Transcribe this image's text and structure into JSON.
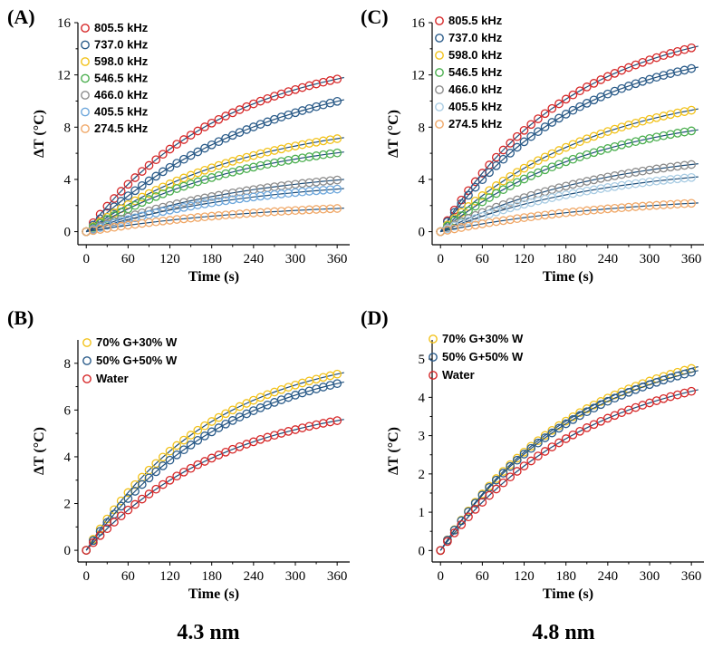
{
  "captions": {
    "left": "4.3 nm",
    "right": "4.8 nm"
  },
  "colors": {
    "red": "#d62728",
    "blue": "#2b5c8a",
    "yellow": "#f2c21a",
    "green": "#4caf50",
    "gray": "#8c8c8c",
    "lightblue": "#6fa8dc",
    "orange": "#f0a868",
    "paleblue": "#a9cce3",
    "fitline": "#1f4e79"
  },
  "chart_data": [
    {
      "id": "A",
      "panel_label": "(A)",
      "type": "scatter",
      "xlabel": "Time (s)",
      "ylabel": "ΔT (°C)",
      "xlim": [
        -12,
        378
      ],
      "ylim": [
        -1,
        16
      ],
      "xticks": [
        "0",
        "60",
        "120",
        "180",
        "240",
        "300",
        "360"
      ],
      "yticks": [
        "0",
        "4",
        "8",
        "12",
        "16"
      ],
      "series": [
        {
          "name": "805.5 kHz",
          "color": "#d62728",
          "final": 11.8,
          "tau": 200
        },
        {
          "name": "737.0 kHz",
          "color": "#2b5c8a",
          "final": 10.1,
          "tau": 260
        },
        {
          "name": "598.0 kHz",
          "color": "#f2c21a",
          "final": 7.2,
          "tau": 230
        },
        {
          "name": "546.5 kHz",
          "color": "#4caf50",
          "final": 6.1,
          "tau": 230
        },
        {
          "name": "466.0 kHz",
          "color": "#8c8c8c",
          "final": 4.0,
          "tau": 240
        },
        {
          "name": "405.5 kHz",
          "color": "#6fa8dc",
          "final": 3.3,
          "tau": 240
        },
        {
          "name": "274.5 kHz",
          "color": "#f0a868",
          "final": 1.8,
          "tau": 260
        }
      ]
    },
    {
      "id": "B",
      "panel_label": "(B)",
      "type": "scatter",
      "xlabel": "Time (s)",
      "ylabel": "ΔT (°C)",
      "xlim": [
        -12,
        378
      ],
      "ylim": [
        -0.5,
        9
      ],
      "xticks": [
        "0",
        "60",
        "120",
        "180",
        "240",
        "300",
        "360"
      ],
      "yticks": [
        "0",
        "2",
        "4",
        "6",
        "8"
      ],
      "series": [
        {
          "name": "70% G+30% W",
          "color": "#f2c21a",
          "final": 7.6,
          "tau": 180
        },
        {
          "name": "50% G+50% W",
          "color": "#2b5c8a",
          "final": 7.2,
          "tau": 200
        },
        {
          "name": "Water",
          "color": "#d62728",
          "final": 5.6,
          "tau": 200
        }
      ]
    },
    {
      "id": "C",
      "panel_label": "(C)",
      "type": "scatter",
      "xlabel": "Time (s)",
      "ylabel": "ΔT (°C)",
      "xlim": [
        -12,
        378
      ],
      "ylim": [
        -1,
        16
      ],
      "xticks": [
        "0",
        "60",
        "120",
        "180",
        "240",
        "300",
        "360"
      ],
      "yticks": [
        "0",
        "4",
        "8",
        "12",
        "16"
      ],
      "series": [
        {
          "name": "805.5 kHz",
          "color": "#d62728",
          "final": 14.2,
          "tau": 190
        },
        {
          "name": "737.0 kHz",
          "color": "#2b5c8a",
          "final": 12.6,
          "tau": 190
        },
        {
          "name": "598.0 kHz",
          "color": "#f2c21a",
          "final": 9.4,
          "tau": 220
        },
        {
          "name": "546.5 kHz",
          "color": "#4caf50",
          "final": 7.8,
          "tau": 220
        },
        {
          "name": "466.0 kHz",
          "color": "#8c8c8c",
          "final": 5.2,
          "tau": 240
        },
        {
          "name": "405.5 kHz",
          "color": "#a9cce3",
          "final": 4.2,
          "tau": 240
        },
        {
          "name": "274.5 kHz",
          "color": "#f0a868",
          "final": 2.2,
          "tau": 260
        }
      ]
    },
    {
      "id": "D",
      "panel_label": "(D)",
      "type": "scatter",
      "xlabel": "Time (s)",
      "ylabel": "ΔT (°C)",
      "xlim": [
        -12,
        378
      ],
      "ylim": [
        -0.3,
        5.5
      ],
      "xticks": [
        "0",
        "60",
        "120",
        "180",
        "240",
        "300",
        "360"
      ],
      "yticks": [
        "0",
        "1",
        "2",
        "3",
        "4",
        "5"
      ],
      "series": [
        {
          "name": "70% G+30% W",
          "color": "#f2c21a",
          "final": 4.8,
          "tau": 200
        },
        {
          "name": "50% G+50% W",
          "color": "#2b5c8a",
          "final": 4.7,
          "tau": 200
        },
        {
          "name": "Water",
          "color": "#d62728",
          "final": 4.2,
          "tau": 210
        }
      ]
    }
  ]
}
